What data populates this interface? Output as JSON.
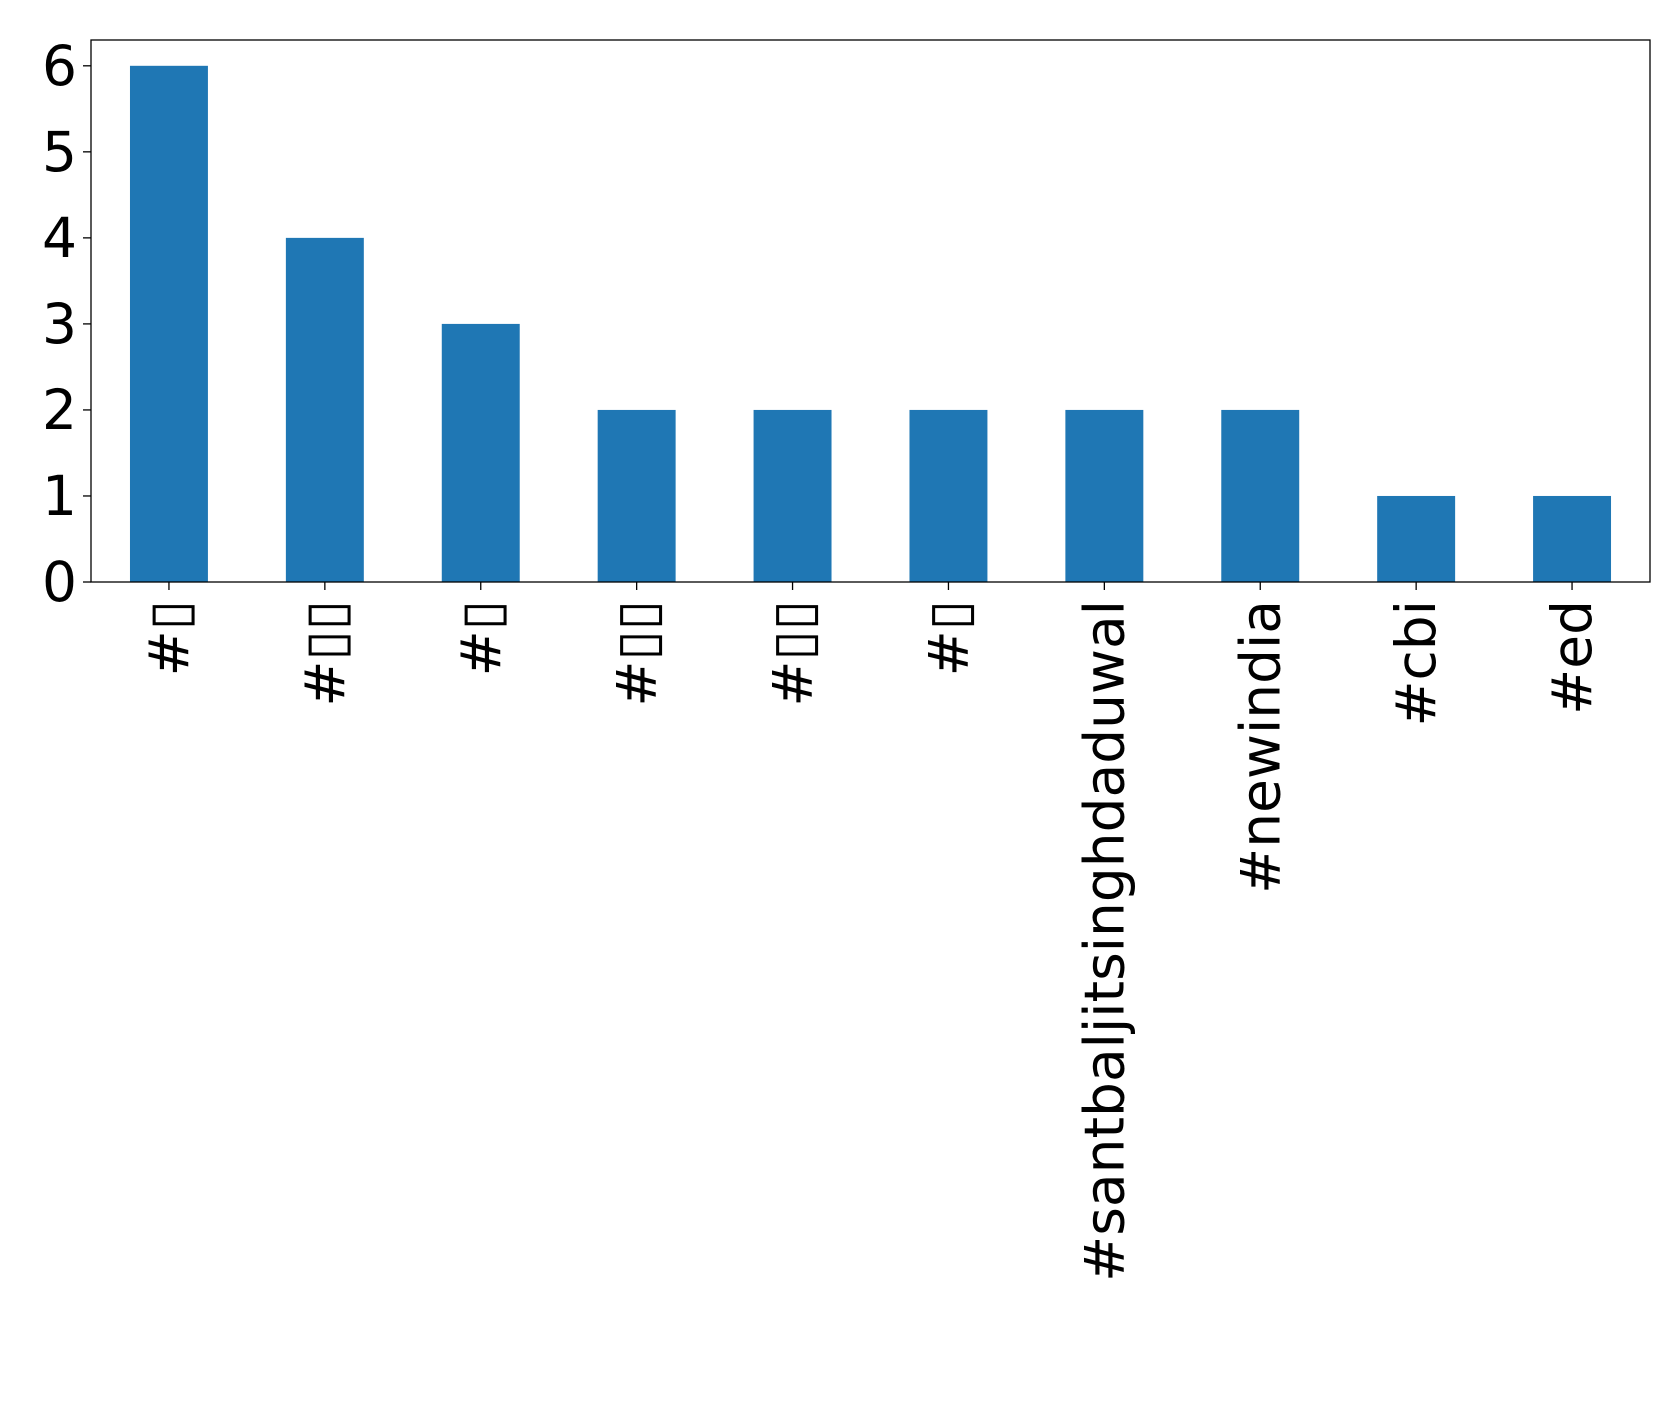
{
  "chart_data": {
    "type": "bar",
    "categories": [
      "#▯",
      "#▯▯",
      "#▯",
      "#▯▯",
      "#▯▯",
      "#▯",
      "#santbaljitsinghdaduwal",
      "#newindia",
      "#cbi",
      "#ed"
    ],
    "values": [
      6,
      4,
      3,
      2,
      2,
      2,
      2,
      2,
      1,
      1
    ],
    "yticks": [
      "0",
      "1",
      "2",
      "3",
      "4",
      "5",
      "6"
    ],
    "ylim": [
      0,
      6.3
    ],
    "title": "",
    "xlabel": "",
    "ylabel": "",
    "bar_color": "#1f77b4",
    "grid": false,
    "legend": "none"
  }
}
